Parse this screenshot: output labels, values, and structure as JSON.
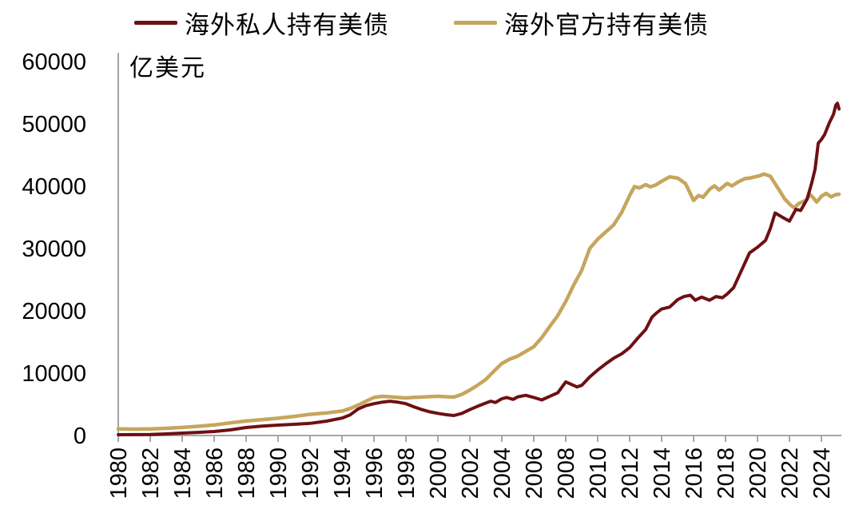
{
  "legend": {
    "private_label": "海外私人持有美债",
    "official_label": "海外官方持有美债"
  },
  "colors": {
    "private_line": "#6e1013",
    "official_line": "#c6a55d",
    "axis": "#a6a6a6",
    "text": "#000000",
    "background": "#ffffff"
  },
  "chart_data": {
    "type": "line",
    "title": "",
    "unit_label": "亿美元",
    "xlabel": "",
    "ylabel": "亿美元",
    "grid": false,
    "legend_position": "top-center",
    "y_axis": {
      "min": 0,
      "max": 60000,
      "tick_step": 10000,
      "tick_labels": [
        "0",
        "10000",
        "20000",
        "30000",
        "40000",
        "50000",
        "60000"
      ]
    },
    "x_axis": {
      "start_year": 1980,
      "end_year": 2025,
      "tick_step_years": 2,
      "tick_labels": [
        "1980",
        "1982",
        "1984",
        "1986",
        "1988",
        "1990",
        "1992",
        "1994",
        "1996",
        "1998",
        "2000",
        "2002",
        "2004",
        "2006",
        "2008",
        "2010",
        "2012",
        "2014",
        "2016",
        "2018",
        "2020",
        "2022",
        "2024"
      ],
      "tick_label_rotation_deg": -90
    },
    "series": [
      {
        "name": "海外私人持有美债",
        "color": "#6e1013",
        "stroke_width": 4,
        "points": [
          [
            1980,
            130
          ],
          [
            1981,
            140
          ],
          [
            1982,
            160
          ],
          [
            1983,
            250
          ],
          [
            1984,
            385
          ],
          [
            1985,
            500
          ],
          [
            1986,
            640
          ],
          [
            1987,
            900
          ],
          [
            1988,
            1280
          ],
          [
            1989,
            1500
          ],
          [
            1990,
            1670
          ],
          [
            1991,
            1800
          ],
          [
            1992,
            1950
          ],
          [
            1993,
            2300
          ],
          [
            1994,
            2800
          ],
          [
            1994.5,
            3300
          ],
          [
            1995,
            4250
          ],
          [
            1995.5,
            4800
          ],
          [
            1996,
            5100
          ],
          [
            1996.5,
            5350
          ],
          [
            1997,
            5500
          ],
          [
            1997.5,
            5350
          ],
          [
            1998,
            5100
          ],
          [
            1998.5,
            4600
          ],
          [
            1999,
            4150
          ],
          [
            1999.5,
            3800
          ],
          [
            2000,
            3550
          ],
          [
            2000.5,
            3350
          ],
          [
            2001,
            3200
          ],
          [
            2001.5,
            3550
          ],
          [
            2002,
            4150
          ],
          [
            2002.5,
            4700
          ],
          [
            2003,
            5200
          ],
          [
            2003.3,
            5500
          ],
          [
            2003.6,
            5300
          ],
          [
            2004,
            5900
          ],
          [
            2004.3,
            6100
          ],
          [
            2004.7,
            5800
          ],
          [
            2005,
            6200
          ],
          [
            2005.5,
            6450
          ],
          [
            2006,
            6100
          ],
          [
            2006.5,
            5700
          ],
          [
            2007,
            6300
          ],
          [
            2007.5,
            6850
          ],
          [
            2008,
            8600
          ],
          [
            2008.3,
            8250
          ],
          [
            2008.7,
            7800
          ],
          [
            2009,
            8050
          ],
          [
            2009.5,
            9400
          ],
          [
            2010,
            10500
          ],
          [
            2010.5,
            11500
          ],
          [
            2011,
            12400
          ],
          [
            2011.5,
            13100
          ],
          [
            2012,
            14100
          ],
          [
            2012.5,
            15600
          ],
          [
            2013,
            17000
          ],
          [
            2013.4,
            19000
          ],
          [
            2013.7,
            19700
          ],
          [
            2014,
            20300
          ],
          [
            2014.5,
            20600
          ],
          [
            2015,
            21800
          ],
          [
            2015.4,
            22300
          ],
          [
            2015.8,
            22500
          ],
          [
            2016.1,
            21700
          ],
          [
            2016.5,
            22200
          ],
          [
            2017,
            21700
          ],
          [
            2017.4,
            22300
          ],
          [
            2017.8,
            22100
          ],
          [
            2018.1,
            22700
          ],
          [
            2018.5,
            23700
          ],
          [
            2019,
            26500
          ],
          [
            2019.5,
            29300
          ],
          [
            2020,
            30200
          ],
          [
            2020.5,
            31300
          ],
          [
            2020.8,
            33200
          ],
          [
            2021.1,
            35700
          ],
          [
            2021.5,
            35100
          ],
          [
            2022,
            34400
          ],
          [
            2022.4,
            36300
          ],
          [
            2022.7,
            36100
          ],
          [
            2023.1,
            37900
          ],
          [
            2023.4,
            40600
          ],
          [
            2023.6,
            42700
          ],
          [
            2023.8,
            46900
          ],
          [
            2024,
            47500
          ],
          [
            2024.2,
            48300
          ],
          [
            2024.5,
            50200
          ],
          [
            2024.75,
            51500
          ],
          [
            2024.9,
            53000
          ],
          [
            2025,
            53300
          ],
          [
            2025.1,
            52400
          ]
        ]
      },
      {
        "name": "海外官方持有美债",
        "color": "#c6a55d",
        "stroke_width": 4.5,
        "points": [
          [
            1980,
            1050
          ],
          [
            1981,
            1020
          ],
          [
            1982,
            1050
          ],
          [
            1983,
            1150
          ],
          [
            1984,
            1300
          ],
          [
            1985,
            1470
          ],
          [
            1986,
            1690
          ],
          [
            1987,
            2020
          ],
          [
            1988,
            2320
          ],
          [
            1989,
            2550
          ],
          [
            1990,
            2770
          ],
          [
            1991,
            3060
          ],
          [
            1992,
            3400
          ],
          [
            1993,
            3620
          ],
          [
            1994,
            3920
          ],
          [
            1994.5,
            4320
          ],
          [
            1995,
            4870
          ],
          [
            1995.5,
            5500
          ],
          [
            1996,
            6100
          ],
          [
            1996.5,
            6280
          ],
          [
            1997,
            6220
          ],
          [
            1997.5,
            6100
          ],
          [
            1998,
            6020
          ],
          [
            1998.5,
            6120
          ],
          [
            1999,
            6170
          ],
          [
            2000,
            6300
          ],
          [
            2000.5,
            6220
          ],
          [
            2001,
            6170
          ],
          [
            2001.5,
            6600
          ],
          [
            2002,
            7300
          ],
          [
            2002.5,
            8100
          ],
          [
            2003,
            9000
          ],
          [
            2003.5,
            10300
          ],
          [
            2004,
            11550
          ],
          [
            2004.5,
            12250
          ],
          [
            2005,
            12750
          ],
          [
            2005.5,
            13500
          ],
          [
            2006,
            14250
          ],
          [
            2006.5,
            15700
          ],
          [
            2007,
            17500
          ],
          [
            2007.5,
            19250
          ],
          [
            2008,
            21500
          ],
          [
            2008.5,
            24150
          ],
          [
            2009,
            26500
          ],
          [
            2009.5,
            30000
          ],
          [
            2010,
            31500
          ],
          [
            2010.5,
            32650
          ],
          [
            2011,
            33800
          ],
          [
            2011.5,
            35800
          ],
          [
            2012,
            38500
          ],
          [
            2012.3,
            39950
          ],
          [
            2012.6,
            39700
          ],
          [
            2013,
            40250
          ],
          [
            2013.3,
            39900
          ],
          [
            2013.6,
            40150
          ],
          [
            2014,
            40800
          ],
          [
            2014.5,
            41500
          ],
          [
            2015,
            41300
          ],
          [
            2015.5,
            40400
          ],
          [
            2016,
            37700
          ],
          [
            2016.3,
            38500
          ],
          [
            2016.6,
            38250
          ],
          [
            2017,
            39500
          ],
          [
            2017.3,
            40050
          ],
          [
            2017.6,
            39400
          ],
          [
            2018.1,
            40450
          ],
          [
            2018.4,
            40050
          ],
          [
            2018.8,
            40700
          ],
          [
            2019.2,
            41200
          ],
          [
            2019.6,
            41350
          ],
          [
            2020.1,
            41650
          ],
          [
            2020.4,
            41950
          ],
          [
            2020.8,
            41600
          ],
          [
            2021.1,
            40400
          ],
          [
            2021.4,
            39200
          ],
          [
            2021.7,
            37950
          ],
          [
            2022.1,
            36900
          ],
          [
            2022.3,
            36550
          ],
          [
            2022.6,
            37250
          ],
          [
            2023,
            37700
          ],
          [
            2023.3,
            38650
          ],
          [
            2023.5,
            38100
          ],
          [
            2023.7,
            37450
          ],
          [
            2024,
            38400
          ],
          [
            2024.3,
            38850
          ],
          [
            2024.6,
            38300
          ],
          [
            2024.9,
            38650
          ],
          [
            2025.1,
            38700
          ]
        ]
      }
    ]
  }
}
